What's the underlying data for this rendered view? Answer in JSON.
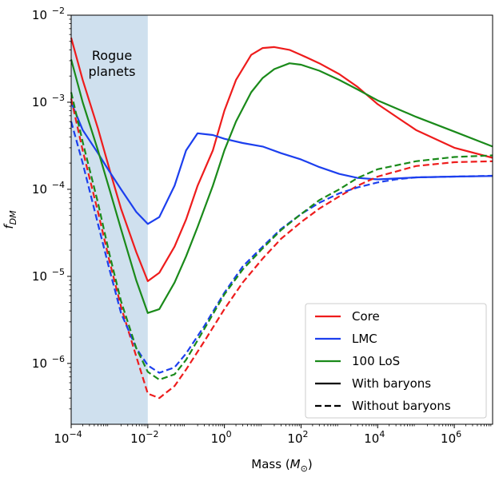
{
  "chart_data": {
    "type": "line",
    "x_scale": "log",
    "y_scale": "log",
    "xlim": [
      0.0001,
      10000000
    ],
    "ylim": [
      2e-07,
      0.01
    ],
    "xlabel_main": "Mass (",
    "xlabel_symbol": "M",
    "xlabel_sub": "⊙",
    "xlabel_end": ")",
    "ylabel_main": "f",
    "ylabel_sub": "DM",
    "x_ticks": [
      {
        "value": 0.0001,
        "base": "10",
        "exp": "−4"
      },
      {
        "value": 0.01,
        "base": "10",
        "exp": "−2"
      },
      {
        "value": 1,
        "base": "10",
        "exp": "0"
      },
      {
        "value": 100,
        "base": "10",
        "exp": "2"
      },
      {
        "value": 10000,
        "base": "10",
        "exp": "4"
      },
      {
        "value": 1000000,
        "base": "10",
        "exp": "6"
      }
    ],
    "y_ticks": [
      {
        "value": 1e-06,
        "base": "10",
        "exp": "−6"
      },
      {
        "value": 1e-05,
        "base": "10",
        "exp": "−5"
      },
      {
        "value": 0.0001,
        "base": "10",
        "exp": "−4"
      },
      {
        "value": 0.001,
        "base": "10",
        "exp": "−3"
      },
      {
        "value": 0.01,
        "base": "10",
        "exp": "−2"
      }
    ],
    "shaded_region": {
      "x0": 0.0001,
      "x1": 0.01,
      "color": "#cfe0ee",
      "label_lines": [
        "Rogue",
        "planets"
      ]
    },
    "series": [
      {
        "name": "Core",
        "color": "#ee1c1c",
        "style": "solid",
        "x": [
          0.0001,
          0.0002,
          0.0005,
          0.001,
          0.002,
          0.005,
          0.01,
          0.02,
          0.05,
          0.1,
          0.2,
          0.5,
          1,
          2,
          5,
          10,
          20,
          50,
          100,
          300,
          1000,
          3000,
          10000,
          100000,
          1000000,
          10000000
        ],
        "y": [
          0.0055,
          0.0018,
          0.0005,
          0.00017,
          6e-05,
          1.9e-05,
          8.8e-06,
          1.1e-05,
          2.2e-05,
          4.5e-05,
          0.00011,
          0.00028,
          0.0008,
          0.0018,
          0.0035,
          0.0042,
          0.0043,
          0.004,
          0.0035,
          0.0028,
          0.0021,
          0.0015,
          0.00095,
          0.00048,
          0.0003,
          0.00023
        ]
      },
      {
        "name": "LMC",
        "color": "#1c3fee",
        "style": "solid",
        "x": [
          0.0001,
          0.0002,
          0.0005,
          0.001,
          0.002,
          0.005,
          0.01,
          0.02,
          0.05,
          0.1,
          0.2,
          0.5,
          1,
          3,
          10,
          30,
          100,
          300,
          1000,
          3000,
          10000,
          30000,
          100000,
          1000000,
          10000000
        ],
        "y": [
          0.001,
          0.00048,
          0.00026,
          0.00016,
          0.0001,
          5.5e-05,
          4e-05,
          4.8e-05,
          0.00011,
          0.00028,
          0.00044,
          0.00042,
          0.00038,
          0.00034,
          0.00031,
          0.00026,
          0.00022,
          0.00018,
          0.00015,
          0.000135,
          0.00013,
          0.000133,
          0.000137,
          0.00014,
          0.000142
        ]
      },
      {
        "name": "100 LoS",
        "color": "#1a8a1a",
        "style": "solid",
        "x": [
          0.0001,
          0.0002,
          0.0005,
          0.001,
          0.002,
          0.005,
          0.01,
          0.02,
          0.05,
          0.1,
          0.2,
          0.5,
          1,
          2,
          5,
          10,
          20,
          50,
          100,
          300,
          1000,
          3000,
          10000,
          100000,
          1000000,
          10000000
        ],
        "y": [
          0.0031,
          0.001,
          0.00028,
          0.0001,
          3.5e-05,
          9e-06,
          3.8e-06,
          4.2e-06,
          8.5e-06,
          1.7e-05,
          3.7e-05,
          0.00011,
          0.00028,
          0.0006,
          0.0013,
          0.0019,
          0.0024,
          0.0028,
          0.0027,
          0.0023,
          0.0018,
          0.0014,
          0.00105,
          0.00068,
          0.00046,
          0.00031
        ]
      },
      {
        "name": "Core",
        "color": "#ee1c1c",
        "style": "dashed",
        "x": [
          0.0001,
          0.0002,
          0.0005,
          0.001,
          0.002,
          0.005,
          0.01,
          0.02,
          0.05,
          0.1,
          0.3,
          1,
          3,
          10,
          30,
          100,
          300,
          1000,
          3000,
          10000,
          100000,
          1000000,
          10000000
        ],
        "y": [
          0.0011,
          0.00028,
          5.5e-05,
          1.5e-05,
          4.5e-06,
          1.2e-06,
          4.5e-07,
          4e-07,
          5.5e-07,
          8.5e-07,
          1.8e-06,
          4.2e-06,
          8.5e-06,
          1.6e-05,
          2.7e-05,
          4.2e-05,
          6e-05,
          8.3e-05,
          0.00011,
          0.00014,
          0.000185,
          0.000205,
          0.00021
        ]
      },
      {
        "name": "LMC",
        "color": "#1c3fee",
        "style": "dashed",
        "x": [
          0.0001,
          0.0002,
          0.0005,
          0.001,
          0.002,
          0.005,
          0.01,
          0.02,
          0.05,
          0.1,
          0.3,
          1,
          3,
          10,
          30,
          100,
          300,
          1000,
          3000,
          10000,
          30000,
          100000,
          1000000,
          10000000
        ],
        "y": [
          0.0006,
          0.0002,
          4e-05,
          1.2e-05,
          3.8e-06,
          1.5e-06,
          9.5e-07,
          7.8e-07,
          9e-07,
          1.3e-06,
          2.7e-06,
          6.5e-06,
          1.3e-05,
          2.2e-05,
          3.5e-05,
          5.2e-05,
          7e-05,
          9e-05,
          0.000105,
          0.00012,
          0.00013,
          0.000137,
          0.00014,
          0.000143
        ]
      },
      {
        "name": "100 LoS",
        "color": "#1a8a1a",
        "style": "dashed",
        "x": [
          0.0001,
          0.0002,
          0.0005,
          0.001,
          0.002,
          0.005,
          0.01,
          0.02,
          0.05,
          0.1,
          0.3,
          1,
          3,
          10,
          30,
          100,
          300,
          1000,
          3000,
          10000,
          100000,
          1000000,
          10000000
        ],
        "y": [
          0.0013,
          0.00035,
          7e-05,
          1.8e-05,
          5.2e-06,
          1.5e-06,
          8e-07,
          6.5e-07,
          7.5e-07,
          1.1e-06,
          2.5e-06,
          6.2e-06,
          1.2e-05,
          2.1e-05,
          3.4e-05,
          5.2e-05,
          7.5e-05,
          0.0001,
          0.000135,
          0.00017,
          0.00021,
          0.000235,
          0.000245
        ]
      }
    ],
    "legend": {
      "placement": "lower-right",
      "entries": [
        {
          "label": "Core",
          "color": "#ee1c1c",
          "style": "solid"
        },
        {
          "label": "LMC",
          "color": "#1c3fee",
          "style": "solid"
        },
        {
          "label": "100 LoS",
          "color": "#1a8a1a",
          "style": "solid"
        },
        {
          "label": "With baryons",
          "color": "#000000",
          "style": "solid"
        },
        {
          "label": "Without baryons",
          "color": "#000000",
          "style": "dashed"
        }
      ]
    }
  }
}
